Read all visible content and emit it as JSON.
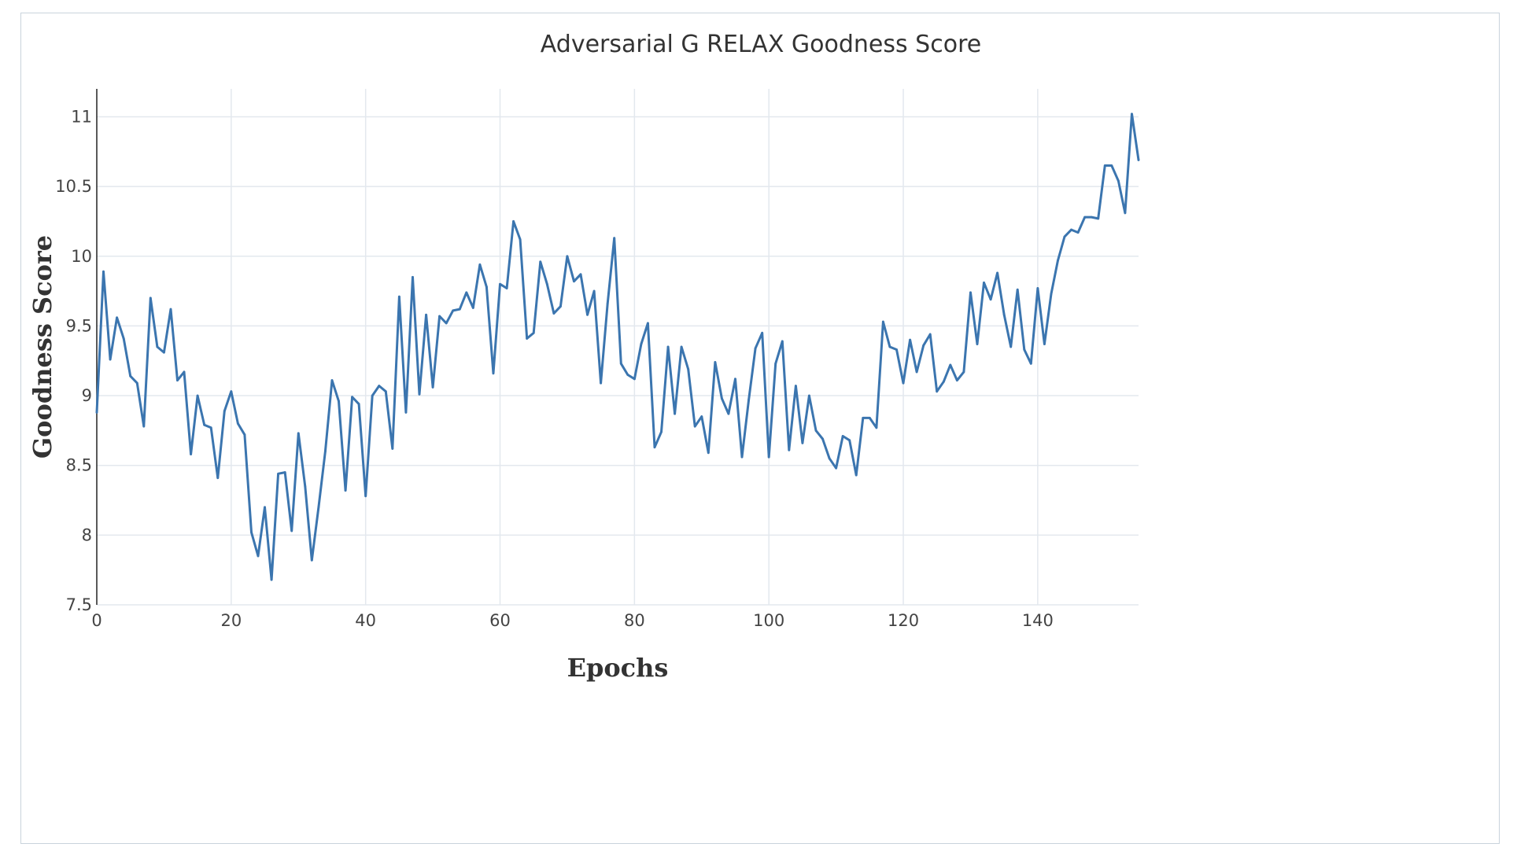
{
  "chart_data": {
    "type": "line",
    "title": "Adversarial G RELAX Goodness Score",
    "xlabel": "Epochs",
    "ylabel": "Goodness Score",
    "xlim": [
      0,
      155
    ],
    "ylim": [
      7.5,
      11.2
    ],
    "xticks": [
      0,
      20,
      40,
      60,
      80,
      100,
      120,
      140
    ],
    "yticks": [
      7.5,
      8,
      8.5,
      9,
      9.5,
      10,
      10.5,
      11
    ],
    "xtick_labels": [
      "0",
      "20",
      "40",
      "60",
      "80",
      "100",
      "120",
      "140"
    ],
    "ytick_labels": [
      "7.5",
      "8",
      "8.5",
      "9",
      "9.5",
      "10",
      "10.5",
      "11"
    ],
    "grid": true,
    "line_color": "#3b75af",
    "series": [
      {
        "x": [
          0,
          1,
          2,
          3,
          4,
          5,
          6,
          7,
          8,
          9,
          10,
          11,
          12,
          13,
          14,
          15,
          16,
          17,
          18,
          19,
          20,
          21,
          22,
          23,
          24,
          25,
          26,
          27,
          28,
          29,
          30,
          31,
          32,
          33,
          34,
          35,
          36,
          37,
          38,
          39,
          40,
          41,
          42,
          43,
          44,
          45,
          46,
          47,
          48,
          49,
          50,
          51,
          52,
          53,
          54,
          55,
          56,
          57,
          58,
          59,
          60,
          61,
          62,
          63,
          64,
          65,
          66,
          67,
          68,
          69,
          70,
          71,
          72,
          73,
          74,
          75,
          76,
          77,
          78,
          79,
          80,
          81,
          82,
          83,
          84,
          85,
          86,
          87,
          88,
          89,
          90,
          91,
          92,
          93,
          94,
          95,
          96,
          97,
          98,
          99,
          100,
          101,
          102,
          103,
          104,
          105,
          106,
          107,
          108,
          109,
          110,
          111,
          112,
          113,
          114,
          115,
          116,
          117,
          118,
          119,
          120,
          121,
          122,
          123,
          124,
          125,
          126,
          127,
          128,
          129,
          130,
          131,
          132,
          133,
          134,
          135,
          136,
          137,
          138,
          139,
          140,
          141,
          142,
          143,
          144,
          145,
          146,
          147,
          148,
          149,
          150,
          151,
          152,
          153,
          154,
          155
        ],
        "y": [
          8.88,
          9.89,
          9.26,
          9.56,
          9.41,
          9.14,
          9.09,
          8.78,
          9.7,
          9.35,
          9.31,
          9.62,
          9.11,
          9.17,
          8.58,
          9.0,
          8.79,
          8.77,
          8.41,
          8.89,
          9.03,
          8.8,
          8.72,
          8.02,
          7.85,
          8.2,
          7.68,
          8.44,
          8.45,
          8.03,
          8.73,
          8.35,
          7.82,
          8.2,
          8.6,
          9.11,
          8.96,
          8.32,
          8.99,
          8.94,
          8.28,
          9.0,
          9.07,
          9.03,
          8.62,
          9.71,
          8.88,
          9.85,
          9.01,
          9.58,
          9.06,
          9.57,
          9.52,
          9.61,
          9.62,
          9.74,
          9.63,
          9.94,
          9.78,
          9.16,
          9.8,
          9.77,
          10.25,
          10.12,
          9.41,
          9.45,
          9.96,
          9.8,
          9.59,
          9.64,
          10.0,
          9.82,
          9.87,
          9.58,
          9.75,
          9.09,
          9.66,
          10.13,
          9.23,
          9.15,
          9.12,
          9.37,
          9.52,
          8.63,
          8.74,
          9.35,
          8.87,
          9.35,
          9.19,
          8.78,
          8.85,
          8.59,
          9.24,
          8.98,
          8.87,
          9.12,
          8.56,
          8.97,
          9.34,
          9.45,
          8.56,
          9.23,
          9.39,
          8.61,
          9.07,
          8.66,
          9.0,
          8.75,
          8.69,
          8.55,
          8.48,
          8.71,
          8.68,
          8.43,
          8.84,
          8.84,
          8.77,
          9.53,
          9.35,
          9.33,
          9.09,
          9.4,
          9.17,
          9.36,
          9.44,
          9.03,
          9.1,
          9.22,
          9.11,
          9.17,
          9.74,
          9.37,
          9.81,
          9.69,
          9.88,
          9.58,
          9.35,
          9.76,
          9.33,
          9.23,
          9.77,
          9.37,
          9.73,
          9.97,
          10.14,
          10.19,
          10.17,
          10.28,
          10.28,
          10.27,
          10.65,
          10.65,
          10.54,
          10.31,
          11.02,
          10.69
        ]
      }
    ]
  }
}
